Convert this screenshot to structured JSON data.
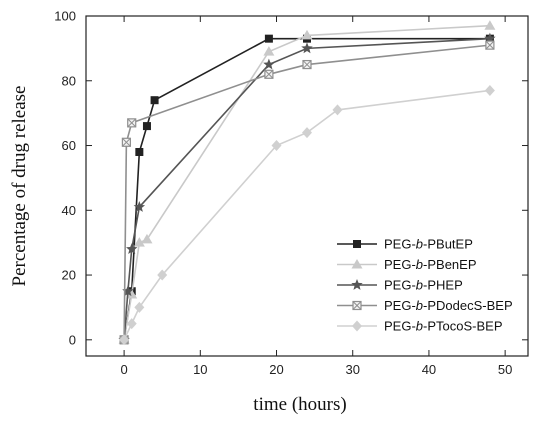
{
  "chart_data": {
    "type": "line",
    "title": "",
    "xlabel": "time (hours)",
    "ylabel": "Percentage of drug release",
    "xlim": [
      -5,
      53
    ],
    "ylim": [
      -5,
      100
    ],
    "xticks": [
      0,
      10,
      20,
      30,
      40,
      50
    ],
    "yticks": [
      0,
      20,
      40,
      60,
      80,
      100
    ],
    "grid": false,
    "legend_position": "lower-right",
    "series": [
      {
        "name_parts": [
          "PEG-",
          "b",
          "-PButEP"
        ],
        "marker": "square",
        "color": "#222222",
        "x": [
          0,
          1,
          2,
          3,
          4,
          19,
          24,
          48
        ],
        "y": [
          0,
          15,
          58,
          66,
          74,
          93,
          93,
          93
        ]
      },
      {
        "name_parts": [
          "PEG-",
          "b",
          "-PBenEP"
        ],
        "marker": "triangle",
        "color": "#c9c9c9",
        "x": [
          0,
          1,
          2,
          3,
          19,
          24,
          48
        ],
        "y": [
          0,
          14,
          30,
          31,
          89,
          94,
          97
        ]
      },
      {
        "name_parts": [
          "PEG-",
          "b",
          "-PHEP"
        ],
        "marker": "star",
        "color": "#555555",
        "x": [
          0,
          0.5,
          1,
          2,
          19,
          24,
          48
        ],
        "y": [
          0,
          15,
          28,
          41,
          85,
          90,
          93
        ]
      },
      {
        "name_parts": [
          "PEG-",
          "b",
          "-PDodecS-BEP"
        ],
        "marker": "crossed-square",
        "color": "#8f8f8f",
        "x": [
          0,
          0.3,
          1,
          19,
          24,
          48
        ],
        "y": [
          0,
          61,
          67,
          82,
          85,
          91
        ]
      },
      {
        "name_parts": [
          "PEG-",
          "b",
          "-PTocoS-BEP"
        ],
        "marker": "diamond",
        "color": "#d0d0d0",
        "x": [
          0,
          1,
          2,
          5,
          20,
          24,
          28,
          48
        ],
        "y": [
          0,
          5,
          10,
          20,
          60,
          64,
          71,
          77
        ]
      }
    ]
  }
}
